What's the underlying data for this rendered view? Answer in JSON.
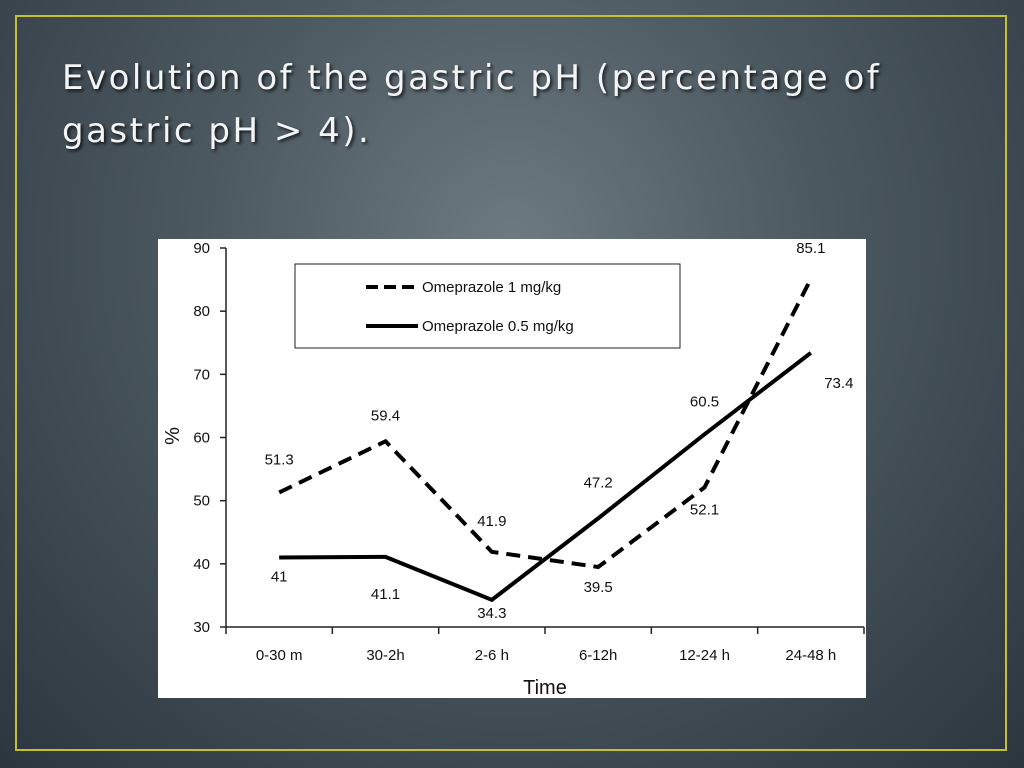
{
  "slide": {
    "title": "Evolution of the gastric pH (percentage of gastric pH > 4).",
    "frame_color": "#c7c02a"
  },
  "chart_data": {
    "type": "line",
    "title": "",
    "xlabel": "Time",
    "ylabel": "%",
    "categories": [
      "0-30 m",
      "30-2h",
      "2-6 h",
      "6-12h",
      "12-24 h",
      "24-48 h"
    ],
    "ylim": [
      30,
      90
    ],
    "yticks": [
      30,
      40,
      50,
      60,
      70,
      80,
      90
    ],
    "grid": false,
    "legend_position": "top-left",
    "series": [
      {
        "name": "Omeprazole 1 mg/kg",
        "style": "dashed",
        "color": "#000000",
        "values": [
          51.3,
          59.4,
          41.9,
          39.5,
          52.1,
          85.1
        ],
        "labels": [
          "51.3",
          "59.4",
          "41.9",
          "39.5",
          "52.1",
          "85.1"
        ]
      },
      {
        "name": "Omeprazole 0.5 mg/kg",
        "style": "solid",
        "color": "#000000",
        "values": [
          41,
          41.1,
          34.3,
          47.2,
          60.5,
          73.4
        ],
        "labels": [
          "41",
          "41.1",
          "34.3",
          "47.2",
          "60.5",
          "73.4"
        ]
      }
    ]
  }
}
